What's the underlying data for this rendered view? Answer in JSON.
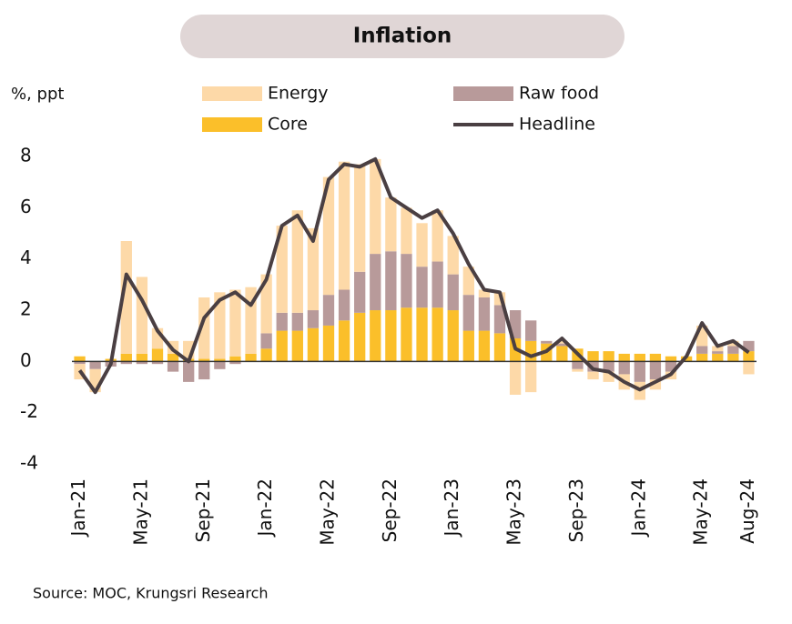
{
  "chart_data": {
    "type": "stacked-bar-line",
    "title": "Inflation",
    "y_label": "%, ppt",
    "source": "Source: MOC, Krungsri Research",
    "categories": [
      "Jan-21",
      null,
      null,
      null,
      "May-21",
      null,
      null,
      null,
      "Sep-21",
      null,
      null,
      null,
      "Jan-22",
      null,
      null,
      null,
      "May-22",
      null,
      null,
      null,
      "Sep-22",
      null,
      null,
      null,
      "Jan-23",
      null,
      null,
      null,
      "May-23",
      null,
      null,
      null,
      "Sep-23",
      null,
      null,
      null,
      "Jan-24",
      null,
      null,
      null,
      "May-24",
      null,
      null,
      "Aug-24"
    ],
    "series": [
      {
        "name": "Core",
        "kind": "bar",
        "color": "#fbbf2a",
        "values": [
          0.2,
          0.0,
          0.1,
          0.3,
          0.3,
          0.5,
          0.3,
          0.1,
          0.1,
          0.1,
          0.2,
          0.3,
          0.5,
          1.2,
          1.2,
          1.3,
          1.4,
          1.6,
          1.9,
          2.0,
          2.0,
          2.1,
          2.1,
          2.1,
          2.0,
          1.2,
          1.2,
          1.1,
          0.9,
          0.8,
          0.7,
          0.6,
          0.5,
          0.4,
          0.4,
          0.3,
          0.3,
          0.3,
          0.2,
          0.2,
          0.3,
          0.3,
          0.3,
          0.4
        ]
      },
      {
        "name": "Raw food",
        "kind": "bar",
        "color": "#b89a9a",
        "values": [
          -0.1,
          -0.3,
          -0.2,
          -0.1,
          -0.1,
          -0.1,
          -0.4,
          -0.8,
          -0.7,
          -0.3,
          -0.1,
          0.0,
          0.6,
          0.7,
          0.7,
          0.7,
          1.2,
          1.2,
          1.6,
          2.2,
          2.3,
          2.1,
          1.6,
          1.8,
          1.4,
          1.4,
          1.3,
          1.1,
          1.1,
          0.8,
          0.1,
          0.1,
          -0.3,
          -0.4,
          -0.4,
          -0.5,
          -0.8,
          -0.7,
          -0.4,
          0.0,
          0.3,
          0.1,
          0.3,
          0.4
        ]
      },
      {
        "name": "Energy",
        "kind": "bar",
        "color": "#fdd9a8",
        "values": [
          -0.6,
          -0.9,
          0.0,
          4.4,
          3.0,
          0.8,
          0.5,
          0.7,
          2.4,
          2.6,
          2.6,
          2.6,
          2.3,
          3.4,
          4.0,
          3.2,
          4.6,
          5.0,
          4.2,
          3.7,
          2.1,
          1.8,
          1.7,
          2.0,
          1.5,
          1.1,
          0.3,
          0.5,
          -1.3,
          -1.2,
          0.0,
          0.1,
          -0.1,
          -0.3,
          -0.4,
          -0.6,
          -0.7,
          -0.4,
          -0.3,
          0.0,
          0.8,
          0.2,
          0.2,
          -0.5
        ]
      },
      {
        "name": "Headline",
        "kind": "line",
        "color": "#4a3f42",
        "values": [
          -0.35,
          -1.2,
          -0.1,
          3.4,
          2.4,
          1.2,
          0.45,
          0.0,
          1.7,
          2.4,
          2.7,
          2.2,
          3.2,
          5.3,
          5.7,
          4.7,
          7.1,
          7.7,
          7.6,
          7.9,
          6.4,
          6.0,
          5.6,
          5.9,
          5.0,
          3.8,
          2.8,
          2.7,
          0.5,
          0.2,
          0.4,
          0.9,
          0.3,
          -0.3,
          -0.4,
          -0.8,
          -1.1,
          -0.8,
          -0.5,
          0.2,
          1.5,
          0.6,
          0.8,
          0.35
        ]
      }
    ],
    "ylim": [
      -4,
      8.5
    ],
    "yticks": [
      8,
      6,
      4,
      2,
      0,
      -2,
      -4
    ]
  }
}
